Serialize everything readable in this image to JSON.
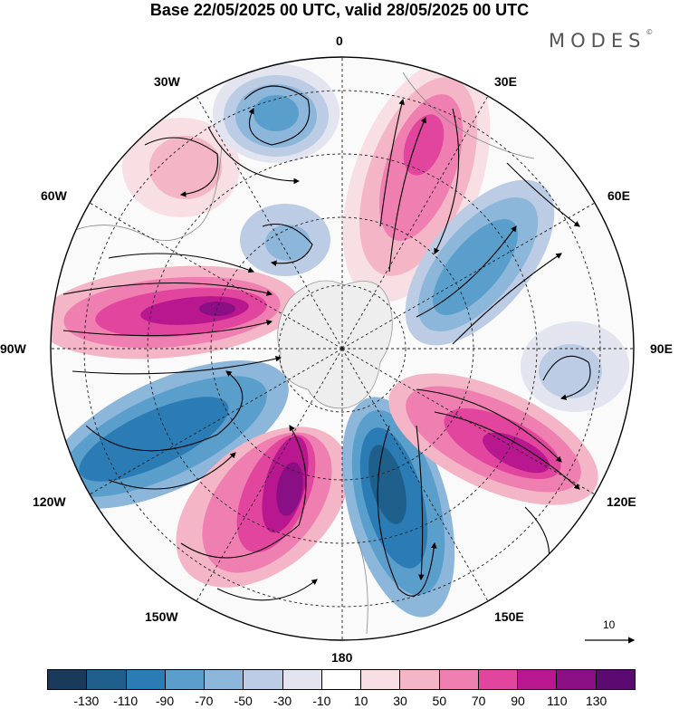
{
  "title": "Base 22/05/2025 00 UTC, valid 28/05/2025 00 UTC",
  "brand": "MODES",
  "brand_mark": "©",
  "longitude_labels": {
    "lon_0": "0",
    "lon_30e": "30E",
    "lon_60e": "60E",
    "lon_90e": "90E",
    "lon_120e": "120E",
    "lon_150e": "150E",
    "lon_180": "180",
    "lon_150w": "150W",
    "lon_120w": "120W",
    "lon_90w": "90W",
    "lon_60w": "60W",
    "lon_30w": "30W"
  },
  "reference_vector_label": "10",
  "colorbar": {
    "colors": [
      "#1a3a5c",
      "#1f5f8c",
      "#2b7bb5",
      "#5a9fcc",
      "#8cb7da",
      "#bccce4",
      "#e2e4f0",
      "#ffffff",
      "#f8dfe3",
      "#f4b5c6",
      "#ee7fb0",
      "#e1459e",
      "#b8178f",
      "#8a0f84",
      "#5a0a70"
    ],
    "tick_labels": [
      "-130",
      "-110",
      "-90",
      "-70",
      "-50",
      "-30",
      "-10",
      "10",
      "30",
      "50",
      "70",
      "90",
      "110",
      "130"
    ]
  },
  "map": {
    "center_color": "#eeeeee",
    "negative_centers_color": "#2b7bb5",
    "positive_centers_color": "#b8178f"
  }
}
